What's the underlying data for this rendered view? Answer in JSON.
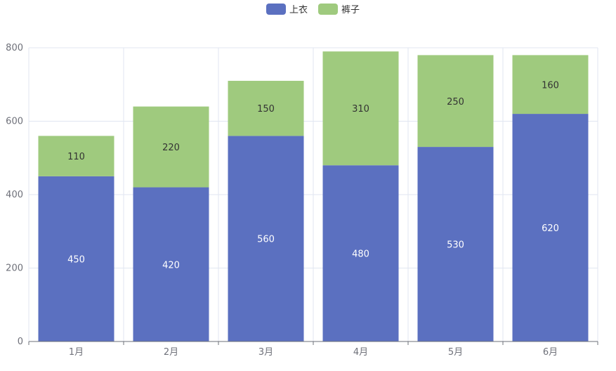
{
  "chart_data": {
    "type": "bar",
    "stacked": true,
    "categories": [
      "1月",
      "2月",
      "3月",
      "4月",
      "5月",
      "6月"
    ],
    "series": [
      {
        "name": "上衣",
        "values": [
          450,
          420,
          560,
          480,
          530,
          620
        ],
        "color": "#5b70c0",
        "label_color": "#ffffff"
      },
      {
        "name": "裤子",
        "values": [
          110,
          220,
          150,
          310,
          250,
          160
        ],
        "color": "#9fca7e",
        "label_color": "#333333"
      }
    ],
    "ylim": [
      0,
      800
    ],
    "yticks": [
      0,
      200,
      400,
      600,
      800
    ],
    "legend_position": "top-center",
    "grid": true
  }
}
